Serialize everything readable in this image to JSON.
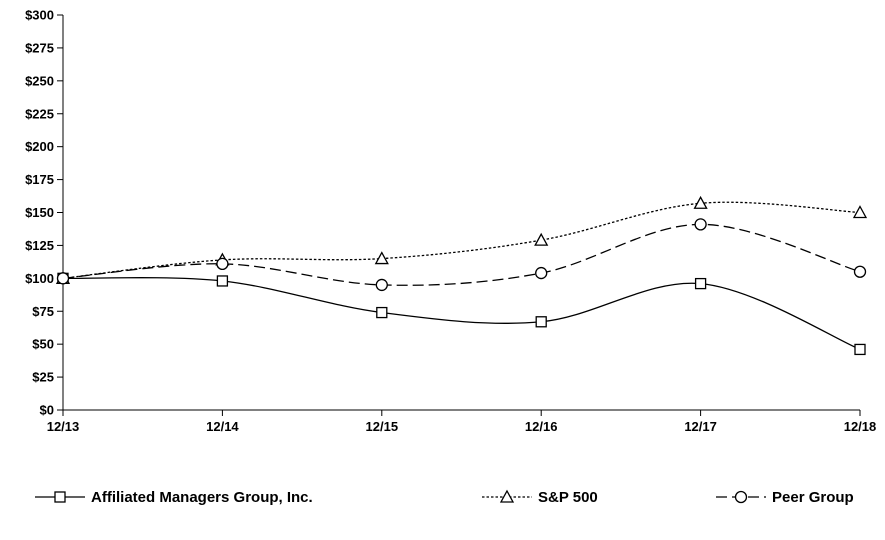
{
  "chart_data": {
    "type": "line",
    "title": "",
    "xlabel": "",
    "ylabel": "",
    "categories": [
      "12/13",
      "12/14",
      "12/15",
      "12/16",
      "12/17",
      "12/18"
    ],
    "ylim": [
      0,
      300
    ],
    "yticks": [
      "$0",
      "$25",
      "$50",
      "$75",
      "$100",
      "$125",
      "$150",
      "$175",
      "$200",
      "$225",
      "$250",
      "$275",
      "$300"
    ],
    "grid": false,
    "legend_position": "bottom",
    "series": [
      {
        "name": "Affiliated Managers Group, Inc.",
        "values": [
          100,
          98,
          74,
          67,
          96,
          46
        ],
        "marker": "square",
        "dash": "solid"
      },
      {
        "name": "S&P 500",
        "values": [
          100,
          114,
          115,
          129,
          157,
          150
        ],
        "marker": "triangle",
        "dash": "dotted"
      },
      {
        "name": "Peer Group",
        "values": [
          100,
          111,
          95,
          104,
          141,
          105
        ],
        "marker": "circle",
        "dash": "dashed"
      }
    ]
  }
}
